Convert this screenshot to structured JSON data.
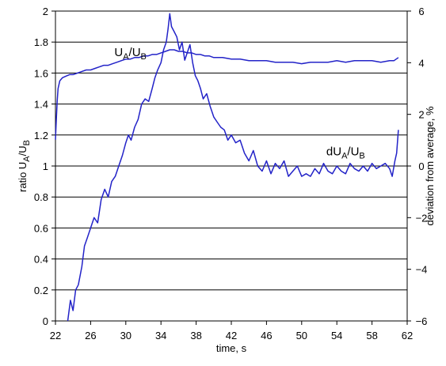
{
  "chart_data": {
    "type": "line",
    "xlabel": "time, s",
    "ylabel_left": {
      "main": "ratio U",
      "sub1": "A",
      "mid": "/U",
      "sub2": "B"
    },
    "ylabel_right": "deviation from average, %",
    "xlim": [
      22,
      62
    ],
    "ylim_left": [
      0,
      2
    ],
    "ylim_right": [
      -6,
      6
    ],
    "x_ticks": [
      "22",
      "26",
      "30",
      "34",
      "38",
      "42",
      "46",
      "50",
      "54",
      "58",
      "62"
    ],
    "y_left_ticks": [
      "0",
      "0.2",
      "0.4",
      "0.6",
      "0.8",
      "1",
      "1.2",
      "1.4",
      "1.6",
      "1.8",
      "2"
    ],
    "y_right_ticks": [
      "-6",
      "-4",
      "-2",
      "0",
      "2",
      "4",
      "6"
    ],
    "grid": "horizontal",
    "line_color": "#2323c8",
    "annotations": [
      {
        "id": "ratio",
        "main": "U",
        "sub1": "A",
        "mid": "/U",
        "sub2": "B",
        "x": 28.7,
        "y": 1.71
      },
      {
        "id": "deviation",
        "main": "dU",
        "sub1": "A",
        "mid": "/U",
        "sub2": "B",
        "x": 52.8,
        "y": 1.07
      }
    ],
    "series": [
      {
        "axis": "left",
        "x": [
          22.0,
          22.1,
          22.2,
          22.3,
          22.5,
          22.8,
          23.2,
          23.6,
          24.0,
          24.5,
          25.0,
          25.5,
          26.0,
          26.5,
          27.0,
          27.5,
          28.0,
          28.5,
          29.0,
          29.5,
          30.0,
          30.5,
          31.0,
          31.5,
          32.0,
          32.5,
          33.0,
          33.5,
          34.0,
          34.5,
          35.0,
          35.5,
          36.0,
          36.5,
          37.0,
          37.5,
          38.0,
          38.5,
          39.0,
          39.5,
          40.0,
          41.0,
          42.0,
          43.0,
          44.0,
          45.0,
          46.0,
          47.0,
          48.0,
          49.0,
          50.0,
          51.0,
          52.0,
          53.0,
          54.0,
          55.0,
          56.0,
          57.0,
          58.0,
          59.0,
          60.0,
          60.5,
          61.0
        ],
        "y": [
          1.17,
          1.3,
          1.42,
          1.5,
          1.55,
          1.57,
          1.58,
          1.59,
          1.59,
          1.6,
          1.61,
          1.62,
          1.62,
          1.63,
          1.64,
          1.65,
          1.65,
          1.66,
          1.67,
          1.68,
          1.69,
          1.69,
          1.7,
          1.7,
          1.71,
          1.71,
          1.72,
          1.72,
          1.73,
          1.74,
          1.75,
          1.75,
          1.74,
          1.74,
          1.73,
          1.73,
          1.72,
          1.72,
          1.71,
          1.71,
          1.7,
          1.7,
          1.69,
          1.69,
          1.68,
          1.68,
          1.68,
          1.67,
          1.67,
          1.67,
          1.66,
          1.67,
          1.67,
          1.67,
          1.68,
          1.67,
          1.68,
          1.68,
          1.68,
          1.67,
          1.68,
          1.68,
          1.7
        ]
      },
      {
        "axis": "right",
        "x": [
          23.4,
          23.7,
          24.0,
          24.3,
          24.6,
          25.0,
          25.3,
          25.6,
          26.0,
          26.4,
          26.8,
          27.2,
          27.6,
          28.0,
          28.4,
          28.8,
          29.2,
          29.6,
          30.0,
          30.3,
          30.6,
          31.0,
          31.4,
          31.8,
          32.2,
          32.6,
          33.0,
          33.3,
          33.6,
          34.0,
          34.3,
          34.6,
          34.8,
          35.0,
          35.2,
          35.5,
          35.8,
          36.1,
          36.4,
          36.7,
          37.0,
          37.3,
          37.6,
          37.9,
          38.2,
          38.5,
          38.8,
          39.2,
          39.6,
          40.0,
          40.4,
          40.8,
          41.2,
          41.6,
          42.0,
          42.5,
          43.0,
          43.5,
          44.0,
          44.5,
          45.0,
          45.5,
          46.0,
          46.5,
          47.0,
          47.5,
          48.0,
          48.5,
          49.0,
          49.5,
          50.0,
          50.5,
          51.0,
          51.5,
          52.0,
          52.5,
          53.0,
          53.5,
          54.0,
          54.5,
          55.0,
          55.5,
          56.0,
          56.5,
          57.0,
          57.5,
          58.0,
          58.5,
          59.0,
          59.5,
          60.0,
          60.3,
          60.6,
          60.8,
          61.0
        ],
        "y": [
          -6.0,
          -5.2,
          -5.6,
          -4.8,
          -4.6,
          -3.9,
          -3.1,
          -2.8,
          -2.4,
          -2.0,
          -2.2,
          -1.3,
          -0.9,
          -1.2,
          -0.6,
          -0.4,
          0.0,
          0.4,
          0.9,
          1.2,
          1.0,
          1.5,
          1.8,
          2.4,
          2.6,
          2.5,
          3.0,
          3.4,
          3.7,
          4.0,
          4.5,
          4.8,
          5.3,
          5.9,
          5.4,
          5.2,
          5.0,
          4.5,
          4.8,
          4.1,
          4.4,
          4.7,
          4.0,
          3.5,
          3.3,
          3.0,
          2.6,
          2.8,
          2.3,
          1.9,
          1.7,
          1.5,
          1.4,
          1.0,
          1.2,
          0.9,
          1.0,
          0.5,
          0.2,
          0.6,
          0.0,
          -0.2,
          0.2,
          -0.3,
          0.1,
          -0.1,
          0.2,
          -0.4,
          -0.2,
          0.0,
          -0.4,
          -0.3,
          -0.4,
          -0.1,
          -0.3,
          0.1,
          -0.2,
          -0.3,
          0.0,
          -0.2,
          -0.3,
          0.1,
          -0.1,
          -0.2,
          0.0,
          -0.2,
          0.1,
          -0.1,
          0.0,
          0.1,
          -0.1,
          -0.4,
          0.2,
          0.5,
          1.4
        ]
      }
    ]
  }
}
